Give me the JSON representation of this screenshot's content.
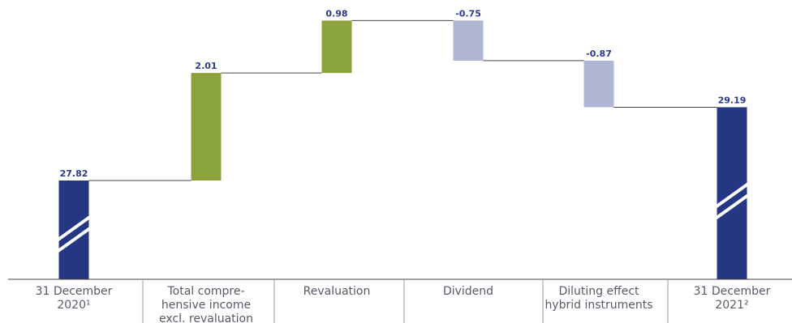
{
  "chart_data": {
    "type": "bar",
    "subtype": "waterfall",
    "categories": [
      [
        "31 December",
        "2020¹"
      ],
      [
        "Total compre-",
        "hensive income",
        "excl. revaluation"
      ],
      [
        "Revaluation"
      ],
      [
        "Dividend"
      ],
      [
        "Diluting effect",
        "hybrid instruments"
      ],
      [
        "31 December",
        "2021²"
      ]
    ],
    "steps": [
      {
        "kind": "total",
        "value": 27.82,
        "label": "27.82"
      },
      {
        "kind": "delta",
        "value": 2.01,
        "label": "2.01"
      },
      {
        "kind": "delta",
        "value": 0.98,
        "label": "0.98"
      },
      {
        "kind": "delta",
        "value": -0.75,
        "label": "-0.75"
      },
      {
        "kind": "delta",
        "value": -0.87,
        "label": "-0.87"
      },
      {
        "kind": "total",
        "value": 29.19,
        "label": "29.19"
      }
    ],
    "axis_break": true,
    "colors": {
      "total": "#253682",
      "increase": "#8aa33a",
      "decrease": "#aeb6d4",
      "label": "#2b3a8c",
      "connector": "#444444",
      "axis": "#444444",
      "divider": "#999999",
      "category_text": "#555a66"
    }
  }
}
